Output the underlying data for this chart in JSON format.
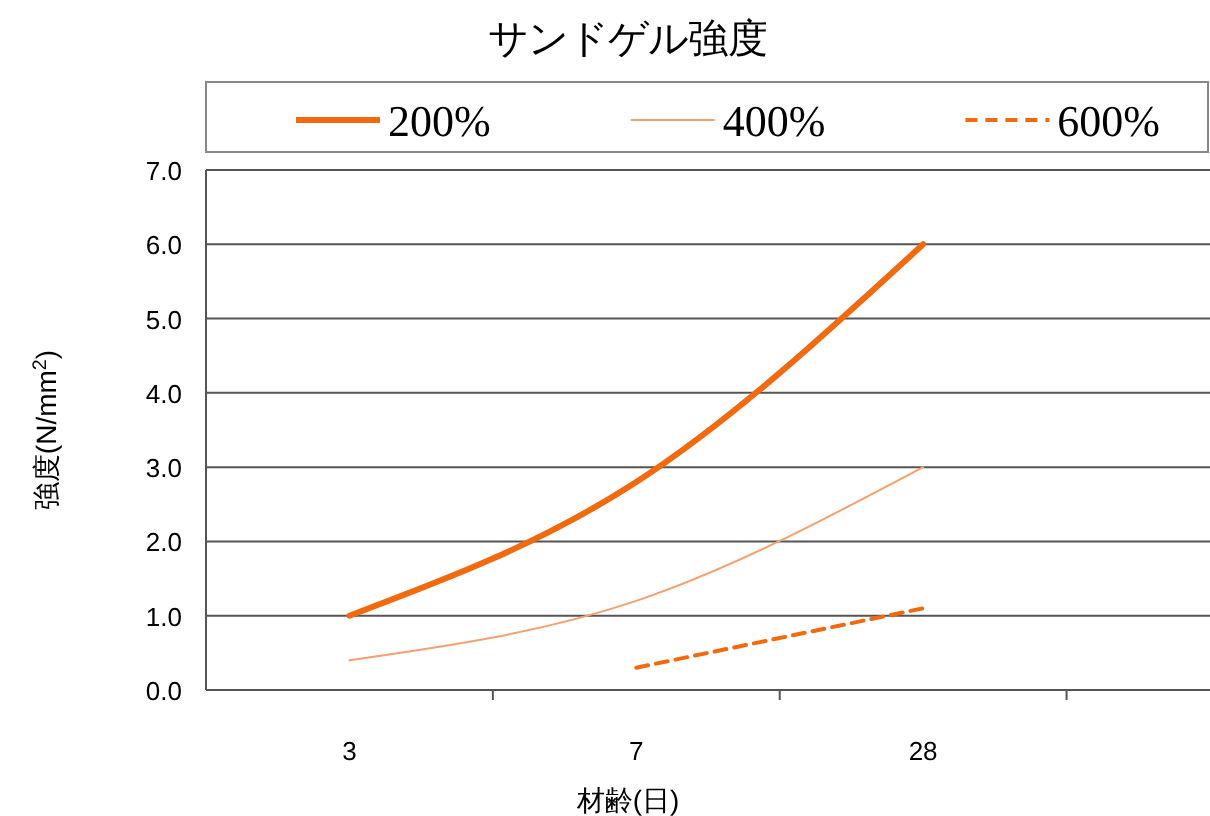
{
  "chart_data": {
    "type": "line",
    "title": "サンドゲル強度",
    "xlabel": "材齢(日)",
    "ylabel": "強度(N/mm$^{2}$)",
    "categories": [
      "3",
      "7",
      "28"
    ],
    "series": [
      {
        "name": "200%",
        "color": "#f26a10",
        "values": [
          1.0,
          2.8,
          6.0
        ],
        "line_style": "solid"
      },
      {
        "name": "400%",
        "color": "#f4a070",
        "values": [
          0.4,
          1.2,
          3.0
        ],
        "line_style": "solid"
      },
      {
        "name": "600%",
        "color": "#f26a10",
        "values": [
          null,
          0.3,
          1.1
        ],
        "line_style": "dashed"
      }
    ],
    "ylim": [
      0,
      7
    ],
    "yticks": [
      {
        "value": 0,
        "label": "0.0"
      },
      {
        "value": 1,
        "label": "1.0"
      },
      {
        "value": 2,
        "label": "2.0"
      },
      {
        "value": 3,
        "label": "3.0"
      },
      {
        "value": 4,
        "label": "4.0"
      },
      {
        "value": 5,
        "label": "5.0"
      },
      {
        "value": 6,
        "label": "6.0"
      },
      {
        "value": 7,
        "label": "7.0"
      }
    ],
    "grid": "y",
    "legend": "top",
    "marker": "none"
  }
}
